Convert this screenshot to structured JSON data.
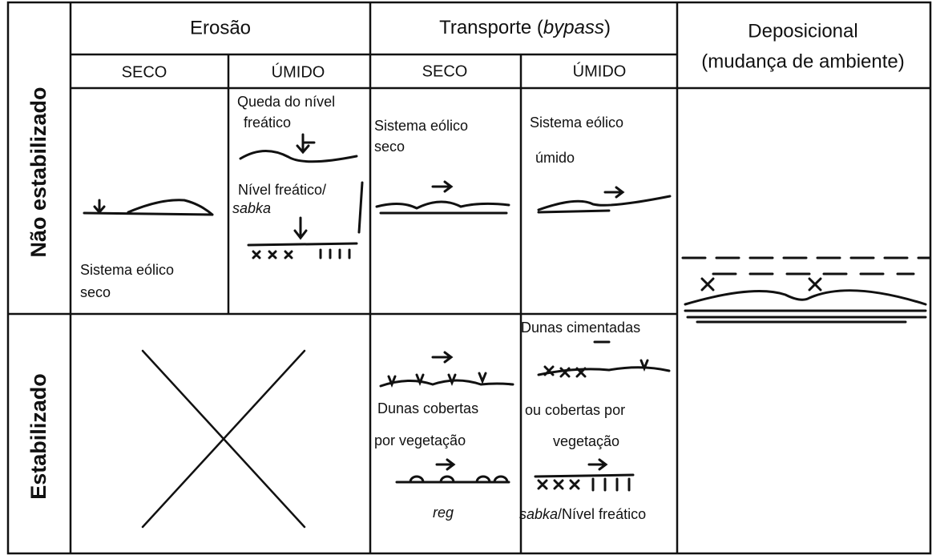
{
  "row_labels": [
    "Não estabilizado",
    "Estabilizado"
  ],
  "header": {
    "erosion": "Erosão",
    "transport": {
      "before": "Transporte (",
      "italic": "bypass",
      "after": ")"
    },
    "deposition": {
      "title": "Deposicional",
      "subtitle": "(mudança de ambiente)"
    }
  },
  "subheaders": [
    "SECO",
    "ÚMIDO",
    "SECO",
    "ÚMIDO"
  ],
  "cells": {
    "erosion_dry": [
      "Sistema eólico",
      "seco"
    ],
    "erosion_wet": {
      "lines": [
        "Queda do nível",
        "freático",
        "Nível freático/"
      ],
      "italic": "sabka"
    },
    "transport_dry": [
      "Sistema eólico",
      "seco"
    ],
    "transport_wet": [
      "Sistema eólico",
      "úmido"
    ],
    "stable_transport_dry": {
      "lines": [
        "Dunas cobertas",
        "por vegetação"
      ],
      "italic": "reg"
    },
    "stable_transport_wet": {
      "lines": [
        "Dunas cimentadas",
        "ou cobertas por",
        "vegetação"
      ],
      "italic": "sabka",
      "after": "/Nível freático"
    }
  }
}
